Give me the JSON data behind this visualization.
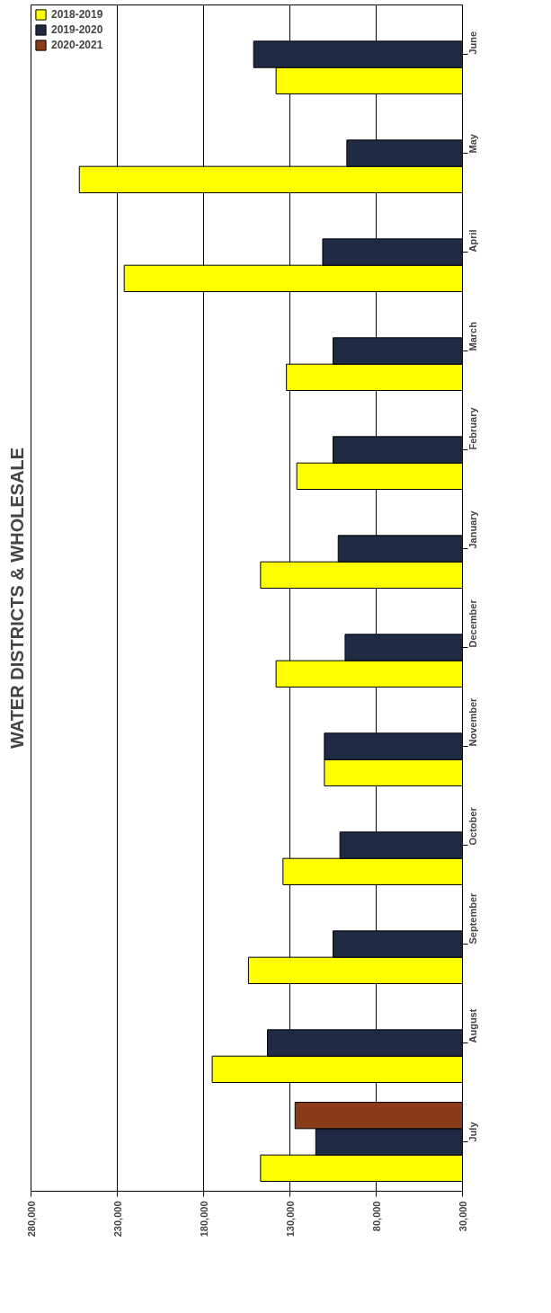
{
  "chart_data": {
    "type": "bar",
    "orientation": "horizontal",
    "title": "WATER DISTRICTS & WHOLESALE",
    "categories": [
      "June",
      "May",
      "April",
      "March",
      "February",
      "January",
      "December",
      "November",
      "October",
      "September",
      "August",
      "July"
    ],
    "series": [
      {
        "name": "2018-2019",
        "color": "#ffff00",
        "values": [
          138000,
          252000,
          226000,
          132000,
          126000,
          147000,
          138000,
          110000,
          134000,
          154000,
          175000,
          147000
        ]
      },
      {
        "name": "2019-2020",
        "color": "#1f2a44",
        "values": [
          151000,
          97000,
          111000,
          105000,
          105000,
          102000,
          98000,
          110000,
          101000,
          105000,
          143000,
          115000
        ]
      },
      {
        "name": "2020-2021",
        "color": "#8b3a1a",
        "values": [
          null,
          null,
          null,
          null,
          null,
          null,
          null,
          null,
          null,
          null,
          null,
          127000
        ]
      }
    ],
    "xlim": [
      280000,
      30000
    ],
    "xticks": [
      {
        "value": 280000,
        "label": "280,000"
      },
      {
        "value": 230000,
        "label": "230,000"
      },
      {
        "value": 180000,
        "label": "180,000"
      },
      {
        "value": 130000,
        "label": "130,000"
      },
      {
        "value": 80000,
        "label": "80,000"
      },
      {
        "value": 30000,
        "label": "30,000"
      }
    ],
    "grid": "x",
    "legend": "top_left"
  }
}
